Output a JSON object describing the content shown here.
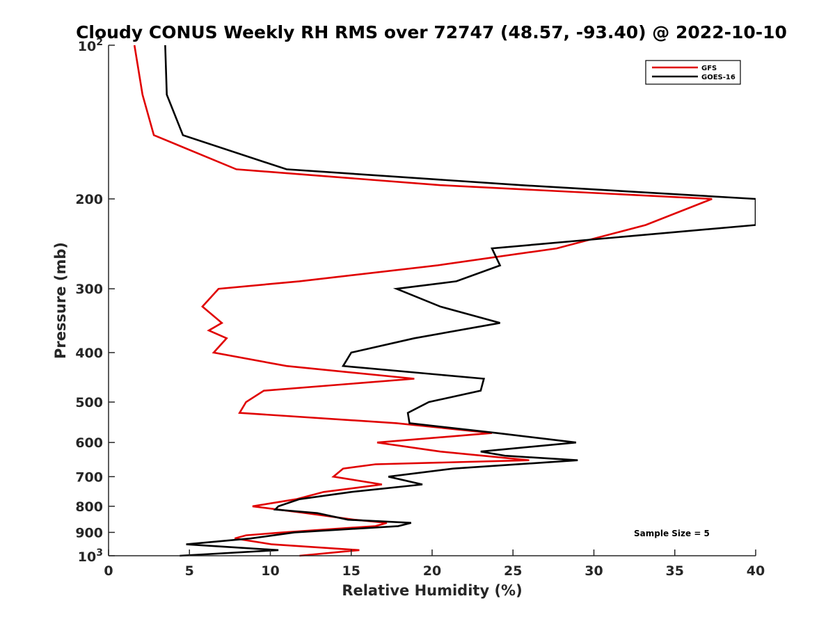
{
  "chart_data": {
    "type": "line",
    "title": "Cloudy CONUS Weekly RH RMS over 72747 (48.57, -93.40) @ 2022-10-10",
    "xlabel": "Relative Humidity (%)",
    "ylabel": "Pressure (mb)",
    "xlim": [
      0,
      40
    ],
    "ylim": [
      100,
      1000
    ],
    "yscale": "log",
    "y_reversed": true,
    "grid": false,
    "legend_position": "top-right",
    "x_ticks": [
      "0",
      "5",
      "10",
      "15",
      "20",
      "25",
      "30",
      "35",
      "40"
    ],
    "y_ticks": [
      {
        "value": 100,
        "base": "10",
        "exp": "2"
      },
      {
        "value": 200,
        "label": "200"
      },
      {
        "value": 300,
        "label": "300"
      },
      {
        "value": 400,
        "label": "400"
      },
      {
        "value": 500,
        "label": "500"
      },
      {
        "value": 600,
        "label": "600"
      },
      {
        "value": 700,
        "label": "700"
      },
      {
        "value": 800,
        "label": "800"
      },
      {
        "value": 900,
        "label": "900"
      },
      {
        "value": 1000,
        "base": "10",
        "exp": "3"
      }
    ],
    "annotation": "Sample Size = 5",
    "series": [
      {
        "name": "GFS",
        "color": "#e00000",
        "points": [
          [
            1.6,
            100
          ],
          [
            2.1,
            125
          ],
          [
            2.8,
            150
          ],
          [
            7.9,
            175
          ],
          [
            20.5,
            188
          ],
          [
            37.3,
            200
          ],
          [
            33.2,
            225
          ],
          [
            27.7,
            250
          ],
          [
            20.3,
            270
          ],
          [
            11.8,
            290
          ],
          [
            6.8,
            300
          ],
          [
            5.8,
            325
          ],
          [
            7.0,
            350
          ],
          [
            6.2,
            362
          ],
          [
            7.3,
            375
          ],
          [
            6.5,
            400
          ],
          [
            11.0,
            425
          ],
          [
            18.9,
            450
          ],
          [
            9.6,
            475
          ],
          [
            8.5,
            500
          ],
          [
            8.1,
            525
          ],
          [
            17.8,
            550
          ],
          [
            23.7,
            575
          ],
          [
            16.6,
            600
          ],
          [
            20.5,
            625
          ],
          [
            26.0,
            650
          ],
          [
            16.5,
            662
          ],
          [
            14.5,
            675
          ],
          [
            13.9,
            700
          ],
          [
            16.9,
            725
          ],
          [
            13.3,
            750
          ],
          [
            11.6,
            775
          ],
          [
            8.9,
            800
          ],
          [
            12.2,
            825
          ],
          [
            15.2,
            850
          ],
          [
            17.2,
            862
          ],
          [
            16.5,
            875
          ],
          [
            10.8,
            900
          ],
          [
            8.5,
            912
          ],
          [
            7.8,
            925
          ],
          [
            10.1,
            950
          ],
          [
            15.5,
            975
          ],
          [
            11.8,
            1000
          ]
        ]
      },
      {
        "name": "GOES-16",
        "color": "#000000",
        "points": [
          [
            3.5,
            100
          ],
          [
            3.6,
            125
          ],
          [
            4.6,
            150
          ],
          [
            11.0,
            175
          ],
          [
            25.5,
            188
          ],
          [
            40.0,
            200
          ],
          [
            40.0,
            225
          ],
          [
            23.7,
            250
          ],
          [
            24.2,
            270
          ],
          [
            21.5,
            290
          ],
          [
            17.8,
            300
          ],
          [
            20.5,
            325
          ],
          [
            24.2,
            350
          ],
          [
            18.9,
            375
          ],
          [
            15.0,
            400
          ],
          [
            14.5,
            425
          ],
          [
            23.2,
            450
          ],
          [
            23.0,
            475
          ],
          [
            19.8,
            500
          ],
          [
            18.5,
            525
          ],
          [
            18.6,
            550
          ],
          [
            24.0,
            575
          ],
          [
            28.9,
            600
          ],
          [
            23.0,
            625
          ],
          [
            24.5,
            637
          ],
          [
            29.0,
            650
          ],
          [
            21.3,
            675
          ],
          [
            17.3,
            700
          ],
          [
            19.4,
            725
          ],
          [
            15.0,
            750
          ],
          [
            11.8,
            775
          ],
          [
            10.5,
            800
          ],
          [
            10.3,
            812
          ],
          [
            12.9,
            825
          ],
          [
            14.8,
            850
          ],
          [
            18.7,
            862
          ],
          [
            17.9,
            875
          ],
          [
            11.5,
            900
          ],
          [
            8.8,
            925
          ],
          [
            4.8,
            950
          ],
          [
            10.5,
            975
          ],
          [
            4.4,
            1000
          ]
        ]
      }
    ]
  }
}
